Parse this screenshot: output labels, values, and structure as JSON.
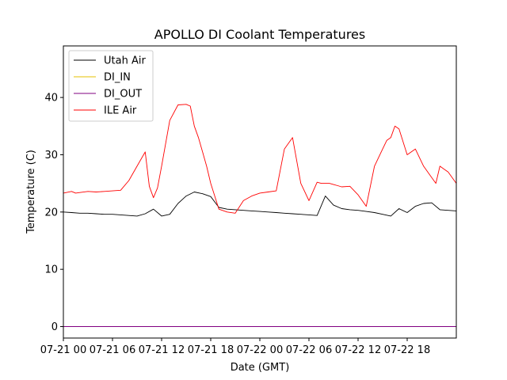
{
  "chart_data": {
    "type": "line",
    "title": "APOLLO DI Coolant Temperatures",
    "xlabel": "Date (GMT)",
    "ylabel": "Temperature (C)",
    "xlim": [
      0,
      48
    ],
    "ylim": [
      -2,
      49
    ],
    "yticks": [
      0,
      10,
      20,
      30,
      40
    ],
    "xticks": [
      {
        "x": 0,
        "label": "07-21 00"
      },
      {
        "x": 6,
        "label": "07-21 06"
      },
      {
        "x": 12,
        "label": "07-21 12"
      },
      {
        "x": 18,
        "label": "07-21 18"
      },
      {
        "x": 24,
        "label": "07-22 00"
      },
      {
        "x": 30,
        "label": "07-22 06"
      },
      {
        "x": 36,
        "label": "07-22 12"
      },
      {
        "x": 42,
        "label": "07-22 18"
      }
    ],
    "legend_position": "top-left",
    "grid": false,
    "series": [
      {
        "name": "Utah Air",
        "color": "#000000",
        "x": [
          0,
          1,
          2,
          3,
          4,
          5,
          6,
          7,
          8,
          9,
          10,
          11,
          12,
          13,
          14,
          15,
          16,
          17,
          18,
          19,
          20,
          21,
          22,
          23,
          24,
          25,
          26,
          27,
          28,
          29,
          30,
          31,
          32,
          33,
          34,
          35,
          36,
          37,
          38,
          39,
          40,
          41,
          42,
          43,
          44,
          45,
          46,
          47,
          48
        ],
        "values": [
          20,
          19.9,
          19.8,
          19.8,
          19.7,
          19.6,
          19.6,
          19.5,
          19.4,
          19.3,
          19.7,
          20.5,
          19.3,
          19.6,
          21.5,
          22.8,
          23.5,
          23.2,
          22.7,
          20.8,
          20.5,
          20.4,
          20.3,
          20.2,
          20.1,
          20.0,
          19.9,
          19.8,
          19.7,
          19.6,
          19.5,
          19.4,
          22.8,
          21.2,
          20.6,
          20.4,
          20.3,
          20.1,
          19.9,
          19.6,
          19.3,
          20.6,
          19.9,
          21.0,
          21.5,
          21.6,
          20.4,
          20.3,
          20.2
        ]
      },
      {
        "name": "DI_IN",
        "color": "#e5c100",
        "x": [
          0,
          48
        ],
        "values": [
          0,
          0
        ]
      },
      {
        "name": "DI_OUT",
        "color": "#800080",
        "x": [
          0,
          48
        ],
        "values": [
          0,
          0
        ]
      },
      {
        "name": "ILE Air",
        "color": "#ff0000",
        "x": [
          0,
          1,
          1.5,
          2,
          3,
          4,
          5,
          6,
          7,
          8,
          9,
          10,
          10.5,
          11,
          11.5,
          12,
          13,
          14,
          15,
          15.5,
          16,
          16.5,
          17,
          17.5,
          18,
          19,
          20,
          21,
          22,
          23,
          24,
          25,
          26,
          27,
          28,
          29,
          30,
          31,
          31.5,
          32,
          32.5,
          33,
          33.5,
          34,
          35,
          36,
          37,
          38,
          39,
          39.5,
          40,
          40.5,
          41,
          42,
          43,
          44,
          45,
          45.5,
          46,
          46.5,
          47,
          48
        ],
        "values": [
          23.3,
          23.6,
          23.3,
          23.4,
          23.6,
          23.5,
          23.6,
          23.7,
          23.8,
          25.5,
          28.0,
          30.5,
          24.5,
          22.5,
          24.2,
          28.0,
          36.0,
          38.7,
          38.8,
          38.5,
          35.0,
          33.0,
          30.5,
          28.0,
          25.0,
          20.5,
          20.0,
          19.8,
          22.0,
          22.8,
          23.3,
          23.5,
          23.7,
          31.0,
          33.0,
          25.0,
          22.0,
          25.2,
          25.0,
          25.0,
          25.0,
          24.8,
          24.6,
          24.4,
          24.5,
          23.0,
          21.0,
          28.0,
          31.0,
          32.5,
          33.0,
          35.0,
          34.5,
          30.0,
          31.0,
          28.0,
          26.0,
          25.0,
          28.0,
          27.5,
          27.0,
          25.0
        ]
      }
    ]
  }
}
